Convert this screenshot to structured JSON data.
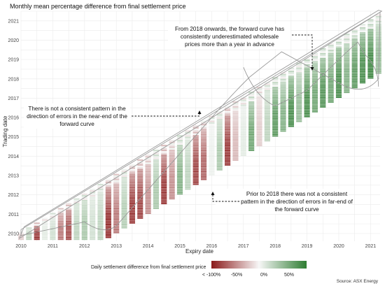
{
  "chart_data": {
    "type": "heatmap",
    "title": "Monthly mean percentage difference from final settlement price",
    "xlabel": "Expiry date",
    "ylabel": "Trading date",
    "x_ticks": [
      "2010",
      "2011",
      "2012",
      "2013",
      "2014",
      "2015",
      "2016",
      "2017",
      "2018",
      "2019",
      "2020",
      "2021"
    ],
    "y_ticks": [
      "2010",
      "2011",
      "2012",
      "2013",
      "2014",
      "2015",
      "2016",
      "2017",
      "2018",
      "2019",
      "2020",
      "2021"
    ],
    "xlim": [
      2010.0,
      2021.3
    ],
    "ylim": [
      2009.6,
      2021.5
    ],
    "legend": {
      "title": "Daily settlement difference from final settlement price",
      "ticks": [
        "< -100%",
        "-50%",
        "0%",
        "50%"
      ],
      "position": "bottom",
      "colors": {
        "neg": "#8b1a1a",
        "mid": "#f7f7f7",
        "pos": "#2e7d32"
      }
    },
    "source": "Source: ASX Energy",
    "annotations": [
      {
        "text_lines": [
          "From 2018 onwards, the forward curve has",
          "consistently underestimated wholesale",
          "prices more than a year in advance"
        ]
      },
      {
        "text_lines": [
          "There is not a consistent pattern in the",
          "direction of errors in the near-end of the",
          "forward curve"
        ]
      },
      {
        "text_lines": [
          "Prior to 2018 there was not a consistent",
          "pattern in the direction of errors in far-end of",
          "the forward curve"
        ]
      }
    ],
    "expiry_columns": [
      {
        "expiry": 2010.0,
        "value": -0.2
      },
      {
        "expiry": 2010.25,
        "value": 0.3
      },
      {
        "expiry": 2010.5,
        "value": -0.9
      },
      {
        "expiry": 2010.75,
        "value": 0.1
      },
      {
        "expiry": 2011.0,
        "value": 0.2
      },
      {
        "expiry": 2011.25,
        "value": -0.6
      },
      {
        "expiry": 2011.5,
        "value": -0.8
      },
      {
        "expiry": 2011.75,
        "value": 0.3
      },
      {
        "expiry": 2012.0,
        "value": 0.4
      },
      {
        "expiry": 2012.25,
        "value": 0.2
      },
      {
        "expiry": 2012.5,
        "value": 0.3
      },
      {
        "expiry": 2012.75,
        "value": -0.95
      },
      {
        "expiry": 2013.0,
        "value": -0.6
      },
      {
        "expiry": 2013.25,
        "value": 0.35
      },
      {
        "expiry": 2013.5,
        "value": -0.9
      },
      {
        "expiry": 2013.75,
        "value": -0.85
      },
      {
        "expiry": 2014.0,
        "value": -0.5
      },
      {
        "expiry": 2014.25,
        "value": 0.4
      },
      {
        "expiry": 2014.5,
        "value": -0.9
      },
      {
        "expiry": 2014.75,
        "value": -0.5
      },
      {
        "expiry": 2015.0,
        "value": 0.6
      },
      {
        "expiry": 2015.25,
        "value": 0.3
      },
      {
        "expiry": 2015.5,
        "value": -0.85
      },
      {
        "expiry": 2015.75,
        "value": -0.7
      },
      {
        "expiry": 2016.0,
        "value": 0.05
      },
      {
        "expiry": 2016.25,
        "value": 0.4
      },
      {
        "expiry": 2016.5,
        "value": -0.9
      },
      {
        "expiry": 2016.75,
        "value": -0.3
      },
      {
        "expiry": 2017.0,
        "value": 0.1
      },
      {
        "expiry": 2017.25,
        "value": 0.7
      },
      {
        "expiry": 2017.5,
        "value": -0.2
      },
      {
        "expiry": 2017.75,
        "value": 0.3
      },
      {
        "expiry": 2018.0,
        "value": 0.8
      },
      {
        "expiry": 2018.25,
        "value": 0.6
      },
      {
        "expiry": 2018.5,
        "value": 0.9
      },
      {
        "expiry": 2018.75,
        "value": 0.5
      },
      {
        "expiry": 2019.0,
        "value": 0.9
      },
      {
        "expiry": 2019.25,
        "value": 0.7
      },
      {
        "expiry": 2019.5,
        "value": 0.85
      },
      {
        "expiry": 2019.75,
        "value": 0.7
      },
      {
        "expiry": 2020.0,
        "value": 0.9
      },
      {
        "expiry": 2020.25,
        "value": 0.6
      },
      {
        "expiry": 2020.5,
        "value": 0.8
      },
      {
        "expiry": 2020.75,
        "value": 0.9
      },
      {
        "expiry": 2021.0,
        "value": 0.95
      },
      {
        "expiry": 2021.25,
        "value": 0.5
      }
    ]
  }
}
